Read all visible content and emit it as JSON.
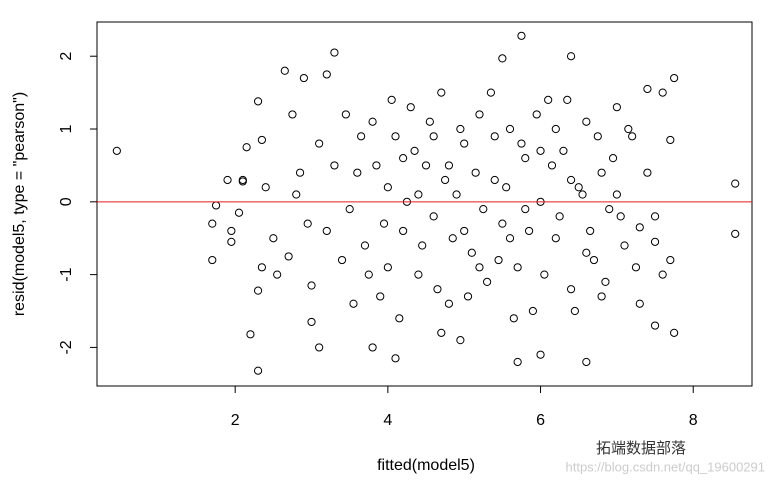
{
  "chart_data": {
    "type": "scatter",
    "xlabel": "fitted(model5)",
    "ylabel": "resid(model5, type = \"pearson\")",
    "xlim": [
      0.19,
      8.77
    ],
    "ylim": [
      -2.53,
      2.47
    ],
    "xticks": [
      2,
      4,
      6,
      8
    ],
    "yticks": [
      -2,
      -1,
      0,
      1,
      2
    ],
    "color": "#000000",
    "reference_line": {
      "value": 0,
      "color": "#e41a1c"
    },
    "watermark": {
      "brand": "拓端数据部落",
      "url": "https://blog.csdn.net/qq_19600291"
    },
    "x": [
      0.45,
      1.7,
      1.7,
      1.75,
      1.9,
      1.95,
      1.95,
      2.05,
      2.1,
      2.1,
      2.15,
      2.2,
      2.3,
      2.3,
      2.3,
      2.35,
      2.4,
      2.35,
      2.5,
      2.55,
      2.65,
      2.7,
      2.75,
      2.8,
      2.9,
      3.0,
      3.0,
      3.1,
      3.2,
      3.3,
      5.75,
      5.5,
      6.4,
      8.55,
      8.55,
      7.75,
      7.75,
      7.7,
      7.7,
      7.5,
      7.6,
      7.3,
      7.5,
      4.1,
      5.7,
      6.6,
      4.95,
      4.7,
      3.8,
      7.6,
      7.4,
      6.0,
      3.6,
      3.7,
      3.8,
      3.9,
      4.0,
      4.1,
      4.2,
      4.3,
      4.4,
      4.5,
      4.6,
      4.7,
      4.8,
      4.9,
      5.0,
      5.1,
      5.2,
      5.3,
      5.4,
      5.5,
      5.6,
      5.7,
      5.8,
      5.9,
      6.0,
      6.1,
      6.2,
      6.3,
      6.4,
      6.5,
      6.6,
      6.7,
      6.8,
      6.9,
      7.0,
      7.1,
      7.2,
      7.3,
      3.5,
      3.65,
      3.75,
      3.85,
      3.95,
      4.05,
      4.15,
      4.25,
      4.35,
      4.45,
      4.55,
      4.65,
      4.75,
      4.85,
      4.95,
      5.05,
      5.15,
      5.25,
      5.35,
      5.45,
      5.55,
      5.65,
      5.75,
      5.85,
      5.95,
      6.05,
      6.15,
      6.25,
      6.35,
      6.45,
      6.55,
      6.65,
      6.75,
      6.85,
      6.95,
      7.05,
      7.15,
      7.25,
      3.3,
      3.4,
      3.45,
      3.55,
      4.0,
      4.2,
      4.4,
      4.6,
      4.8,
      5.0,
      5.2,
      5.4,
      5.6,
      5.8,
      6.0,
      6.2,
      6.4,
      6.6,
      6.8,
      7.0,
      7.4,
      7.5,
      3.2,
      3.1,
      2.95,
      2.85
    ],
    "y": [
      0.7,
      -0.8,
      -0.3,
      -0.05,
      0.3,
      -0.4,
      -0.55,
      -0.15,
      0.3,
      0.28,
      0.75,
      -1.82,
      -2.32,
      1.38,
      -1.22,
      0.85,
      0.2,
      -0.9,
      -0.5,
      -1.0,
      1.8,
      -0.75,
      1.2,
      0.1,
      1.7,
      -1.65,
      -1.15,
      -2.0,
      1.75,
      2.05,
      2.28,
      1.97,
      2.0,
      0.25,
      -0.44,
      1.7,
      -1.8,
      0.85,
      -0.8,
      -1.7,
      -1.0,
      -0.35,
      -0.55,
      -2.15,
      -2.2,
      -2.2,
      -1.9,
      -1.8,
      -2.0,
      1.5,
      1.55,
      -2.1,
      0.4,
      -0.6,
      1.1,
      -1.3,
      0.2,
      0.9,
      -0.4,
      1.3,
      -1.0,
      0.5,
      -0.2,
      1.5,
      -1.4,
      0.1,
      0.8,
      -0.7,
      1.2,
      -1.1,
      0.3,
      -0.3,
      1.0,
      -0.9,
      0.6,
      -1.5,
      0.0,
      1.4,
      -0.5,
      0.7,
      -1.2,
      0.2,
      1.1,
      -0.8,
      0.4,
      -0.1,
      1.3,
      -0.6,
      0.9,
      -1.4,
      -0.1,
      0.9,
      -1.0,
      0.5,
      -0.3,
      1.4,
      -1.6,
      0.0,
      0.7,
      -0.6,
      1.1,
      -1.2,
      0.3,
      -0.5,
      1.0,
      -1.3,
      0.4,
      -0.1,
      1.5,
      -0.8,
      0.2,
      -1.6,
      0.8,
      -0.4,
      1.2,
      -1.0,
      0.5,
      -0.2,
      1.4,
      -1.5,
      0.1,
      -0.4,
      0.9,
      -1.1,
      0.6,
      -0.2,
      1.0,
      -0.9,
      0.5,
      -0.8,
      1.2,
      -1.4,
      -0.9,
      0.6,
      0.1,
      0.9,
      0.5,
      -0.4,
      -0.9,
      0.9,
      -0.5,
      -0.1,
      0.7,
      1.0,
      0.3,
      -0.7,
      -1.3,
      0.1,
      0.4,
      -0.2,
      -0.4,
      0.8,
      -0.3,
      0.4
    ]
  }
}
